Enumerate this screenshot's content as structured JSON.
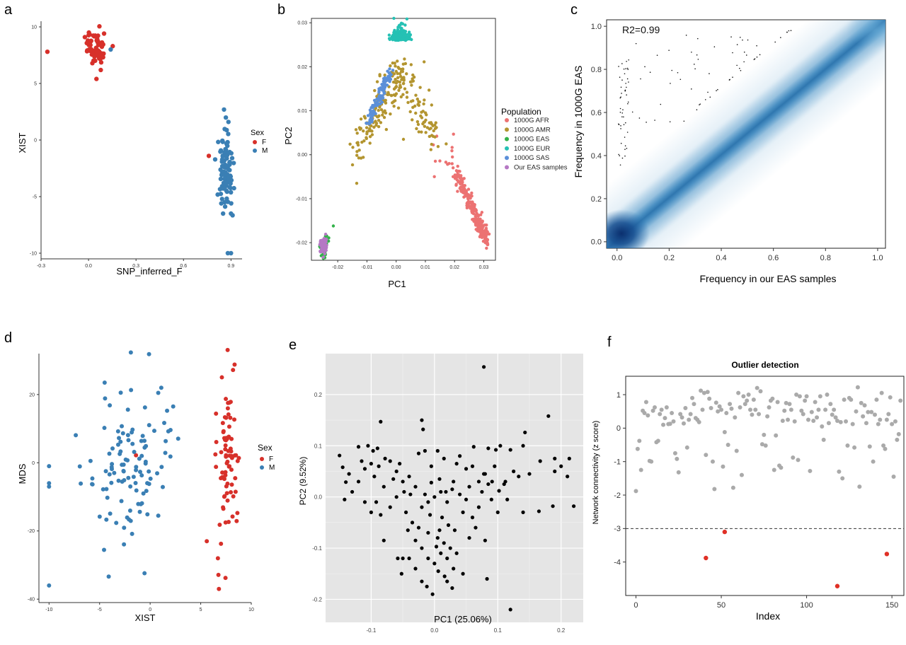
{
  "panel_labels": [
    "a",
    "b",
    "c",
    "d",
    "e",
    "f"
  ],
  "colors": {
    "female": "#d7302a",
    "male": "#3a7fb4",
    "afr": "#ec7272",
    "amr": "#b39530",
    "eas": "#33b24a",
    "eur": "#25c1b4",
    "sas": "#5b8fd9",
    "ours": "#b578c4",
    "outlier": "#e03026",
    "normal": "#aaaaaa",
    "density": "#1f5e9c"
  },
  "chart_data": [
    {
      "panel": "a",
      "type": "scatter",
      "xlabel": "SNP_inferred_F",
      "ylabel": "XIST",
      "xlim": [
        -0.3,
        0.97
      ],
      "ylim": [
        -10.5,
        10.5
      ],
      "x_ticks": [
        "-0.3",
        "0.0",
        "0.3",
        "0.6",
        "0.9"
      ],
      "x_tick_values": [
        -0.3,
        0.0,
        0.3,
        0.6,
        0.9
      ],
      "y_ticks": [
        "10",
        "5",
        "0",
        "-5",
        "-10"
      ],
      "y_tick_values": [
        10,
        5,
        0,
        -5,
        -10
      ],
      "legend": {
        "title": "Sex",
        "entries": [
          "F",
          "M"
        ]
      },
      "series": [
        {
          "name": "F",
          "color_key": "female",
          "cluster": {
            "cx": 0.05,
            "cy": 7.9,
            "sx": 0.035,
            "sy": 0.75,
            "n": 62
          },
          "extra": [
            [
              -0.26,
              7.8
            ],
            [
              0.76,
              -1.4
            ],
            [
              0.05,
              5.4
            ]
          ]
        },
        {
          "name": "M",
          "color_key": "male",
          "cluster": {
            "cx": 0.87,
            "cy": -2.3,
            "sx": 0.02,
            "sy": 2.0,
            "n": 95
          },
          "extra": [
            [
              0.14,
              8.0
            ],
            [
              0.88,
              -10.0
            ],
            [
              0.9,
              -10.0
            ],
            [
              0.85,
              -6.5
            ],
            [
              0.9,
              -6.5
            ],
            [
              0.86,
              -5.5
            ]
          ]
        }
      ]
    },
    {
      "panel": "b",
      "type": "scatter",
      "xlabel": "PC1",
      "ylabel": "PC2",
      "xlim": [
        -0.029,
        0.034
      ],
      "ylim": [
        -0.024,
        0.031
      ],
      "x_ticks": [
        "-0.02",
        "-0.01",
        "0.00",
        "0.01",
        "0.02",
        "0.03"
      ],
      "x_tick_values": [
        -0.02,
        -0.01,
        0.0,
        0.01,
        0.02,
        0.03
      ],
      "y_ticks": [
        "0.03",
        "0.02",
        "0.01",
        "0.00",
        "-0.01",
        "-0.02"
      ],
      "y_tick_values": [
        0.03,
        0.02,
        0.01,
        0.0,
        -0.01,
        -0.02
      ],
      "legend": {
        "title": "Population",
        "entries": [
          "1000G AFR",
          "1000G AMR",
          "1000G EAS",
          "1000G EUR",
          "1000G SAS",
          "Our EAS samples"
        ]
      }
    },
    {
      "panel": "c",
      "type": "heatmap",
      "xlabel": "Frequency in our EAS samples",
      "ylabel": "Frequency in 1000G EAS",
      "annotation": "R2=0.99",
      "xlim": [
        -0.04,
        1.03
      ],
      "ylim": [
        -0.03,
        1.03
      ],
      "x_ticks": [
        "0.0",
        "0.2",
        "0.4",
        "0.6",
        "0.8",
        "1.0"
      ],
      "x_tick_values": [
        0.0,
        0.2,
        0.4,
        0.6,
        0.8,
        1.0
      ],
      "y_ticks": [
        "1.0",
        "0.8",
        "0.6",
        "0.4",
        "0.2",
        "0.0"
      ],
      "y_tick_values": [
        1.0,
        0.8,
        0.6,
        0.4,
        0.2,
        0.0
      ]
    },
    {
      "panel": "d",
      "type": "scatter",
      "xlabel": "XIST",
      "ylabel": "MDS",
      "xlim": [
        -11,
        10
      ],
      "ylim": [
        -41,
        32
      ],
      "x_ticks": [
        "-10",
        "-5",
        "0",
        "5",
        "10"
      ],
      "x_tick_values": [
        -10,
        -5,
        0,
        5,
        10
      ],
      "y_ticks": [
        "20",
        "0",
        "-20",
        "-40"
      ],
      "y_tick_values": [
        20,
        0,
        -20,
        -40
      ],
      "legend": {
        "title": "Sex",
        "entries": [
          "F",
          "M"
        ]
      },
      "series": [
        {
          "name": "F",
          "color_key": "female",
          "cluster": {
            "cx": 7.6,
            "cy": 2.0,
            "sx": 0.55,
            "sy": 13.0,
            "n": 80
          },
          "extra": [
            [
              6.8,
              -37
            ],
            [
              5.6,
              -23
            ],
            [
              -1.4,
              2.2
            ]
          ]
        },
        {
          "name": "M",
          "color_key": "male",
          "cluster": {
            "cx": -2.0,
            "cy": -2.0,
            "sx": 2.0,
            "sy": 11.0,
            "n": 110
          },
          "extra": [
            [
              -10,
              -36
            ],
            [
              -10,
              -1
            ],
            [
              -10,
              -6
            ],
            [
              -10,
              -7
            ],
            [
              -4.5,
              23.5
            ],
            [
              0.8,
              20.5
            ],
            [
              1.1,
              22
            ]
          ]
        }
      ]
    },
    {
      "panel": "e",
      "type": "scatter",
      "xlabel": "PC1 (25.06%)",
      "ylabel": "PC2 (9.52%)",
      "xlim": [
        -0.172,
        0.235
      ],
      "ylim": [
        -0.245,
        0.28
      ],
      "x_ticks": [
        "-0.1",
        "0.0",
        "0.1",
        "0.2"
      ],
      "x_tick_values": [
        -0.1,
        0.0,
        0.1,
        0.2
      ],
      "y_ticks": [
        "0.2",
        "0.1",
        "0.0",
        "-0.1",
        "-0.2"
      ],
      "y_tick_values": [
        0.2,
        0.1,
        0.0,
        -0.1,
        -0.2
      ],
      "points": [
        [
          0.078,
          0.254
        ],
        [
          0.18,
          0.158
        ],
        [
          0.143,
          0.126
        ],
        [
          -0.085,
          0.147
        ],
        [
          -0.02,
          0.15
        ],
        [
          -0.018,
          0.132
        ],
        [
          0.085,
          0.095
        ],
        [
          0.104,
          0.1
        ],
        [
          0.12,
          0.092
        ],
        [
          0.14,
          0.1
        ],
        [
          0.213,
          0.075
        ],
        [
          0.19,
          0.075
        ],
        [
          0.167,
          0.07
        ],
        [
          0.2,
          0.06
        ],
        [
          -0.15,
          0.081
        ],
        [
          -0.12,
          0.098
        ],
        [
          -0.105,
          0.1
        ],
        [
          -0.09,
          0.095
        ],
        [
          -0.145,
          0.058
        ],
        [
          -0.14,
          0.029
        ],
        [
          -0.142,
          -0.005
        ],
        [
          -0.13,
          0.01
        ],
        [
          -0.11,
          0.055
        ],
        [
          -0.1,
          0.065
        ],
        [
          0.21,
          0.04
        ],
        [
          0.19,
          0.05
        ],
        [
          0.22,
          -0.018
        ],
        [
          0.187,
          -0.018
        ],
        [
          0.15,
          0.045
        ],
        [
          0.133,
          0.04
        ],
        [
          0.165,
          -0.028
        ],
        [
          0.11,
          0.025
        ],
        [
          0.112,
          0.03
        ],
        [
          0.085,
          0.025
        ],
        [
          0.091,
          0.03
        ],
        [
          0.102,
          0.012
        ],
        [
          0.14,
          -0.03
        ],
        [
          0.08,
          -0.085
        ],
        [
          0.083,
          -0.16
        ],
        [
          0.12,
          -0.22
        ],
        [
          -0.003,
          -0.19
        ],
        [
          -0.02,
          -0.165
        ],
        [
          0.02,
          -0.165
        ],
        [
          0.03,
          -0.14
        ],
        [
          0.045,
          -0.15
        ],
        [
          -0.03,
          -0.14
        ],
        [
          -0.04,
          -0.12
        ],
        [
          -0.05,
          -0.12
        ],
        [
          -0.058,
          -0.12
        ],
        [
          -0.08,
          -0.085
        ],
        [
          -0.092,
          -0.01
        ],
        [
          -0.085,
          -0.035
        ],
        [
          -0.11,
          -0.01
        ],
        [
          -0.07,
          0.07
        ],
        [
          -0.06,
          0.05
        ],
        [
          -0.05,
          0.03
        ],
        [
          -0.04,
          0.04
        ],
        [
          -0.03,
          0.02
        ],
        [
          -0.02,
          -0.02
        ],
        [
          -0.01,
          -0.01
        ],
        [
          0.0,
          0.0
        ],
        [
          0.01,
          0.01
        ],
        [
          0.02,
          -0.01
        ],
        [
          0.03,
          0.03
        ],
        [
          0.04,
          0.005
        ],
        [
          0.05,
          -0.005
        ],
        [
          0.06,
          0.06
        ],
        [
          0.07,
          0.03
        ],
        [
          -0.025,
          0.085
        ],
        [
          -0.015,
          0.09
        ],
        [
          0.005,
          0.09
        ],
        [
          0.015,
          0.075
        ],
        [
          0.035,
          0.065
        ],
        [
          0.05,
          0.055
        ],
        [
          -0.005,
          0.06
        ],
        [
          -0.045,
          -0.03
        ],
        [
          -0.035,
          -0.05
        ],
        [
          -0.025,
          -0.06
        ],
        [
          -0.01,
          -0.07
        ],
        [
          0.005,
          -0.08
        ],
        [
          0.015,
          -0.09
        ],
        [
          0.025,
          -0.1
        ],
        [
          0.01,
          -0.11
        ],
        [
          0.0,
          -0.13
        ],
        [
          -0.01,
          -0.12
        ],
        [
          0.02,
          -0.12
        ],
        [
          0.035,
          -0.11
        ],
        [
          0.06,
          -0.04
        ],
        [
          0.065,
          -0.06
        ],
        [
          0.045,
          -0.03
        ],
        [
          -0.06,
          0.0
        ],
        [
          -0.07,
          -0.02
        ],
        [
          -0.08,
          0.02
        ],
        [
          -0.065,
          0.035
        ],
        [
          -0.055,
          0.065
        ],
        [
          -0.095,
          0.04
        ],
        [
          -0.12,
          0.03
        ],
        [
          0.075,
          0.01
        ],
        [
          0.055,
          0.02
        ],
        [
          0.09,
          -0.005
        ],
        [
          0.1,
          -0.03
        ],
        [
          0.115,
          -0.005
        ],
        [
          0.125,
          0.05
        ],
        [
          0.095,
          0.06
        ],
        [
          0.08,
          0.045
        ],
        [
          0.062,
          0.098
        ],
        [
          0.04,
          0.08
        ],
        [
          -0.078,
          0.075
        ],
        [
          -0.088,
          0.06
        ],
        [
          -0.005,
          0.028
        ],
        [
          0.008,
          0.035
        ],
        [
          0.018,
          0.01
        ],
        [
          0.028,
          0.015
        ],
        [
          -0.038,
          0.005
        ],
        [
          -0.048,
          0.01
        ],
        [
          -0.015,
          0.005
        ],
        [
          -0.007,
          -0.035
        ],
        [
          0.012,
          -0.04
        ],
        [
          0.022,
          -0.055
        ],
        [
          0.032,
          -0.065
        ],
        [
          -0.02,
          -0.1
        ],
        [
          -0.03,
          -0.085
        ],
        [
          -0.042,
          -0.065
        ],
        [
          0.055,
          -0.08
        ],
        [
          0.07,
          -0.02
        ],
        [
          -0.1,
          -0.03
        ],
        [
          -0.115,
          0.07
        ],
        [
          -0.135,
          0.045
        ],
        [
          0.006,
          -0.145
        ],
        [
          0.016,
          -0.155
        ],
        [
          -0.012,
          -0.175
        ],
        [
          0.028,
          -0.178
        ],
        [
          -0.097,
          0.09
        ],
        [
          0.003,
          -0.097
        ],
        [
          0.008,
          -0.065
        ],
        [
          -0.052,
          -0.15
        ],
        [
          0.078,
          0.045
        ],
        [
          0.097,
          0.092
        ]
      ]
    },
    {
      "panel": "f",
      "type": "scatter",
      "title": "Outlier detection",
      "xlabel": "Index",
      "ylabel": "Network connectivity (z score)",
      "xlim": [
        -6,
        157
      ],
      "ylim": [
        -5.0,
        1.55
      ],
      "threshold": -3,
      "x_ticks": [
        "0",
        "50",
        "100",
        "150"
      ],
      "x_tick_values": [
        0,
        50,
        100,
        150
      ],
      "y_ticks": [
        "1",
        "0",
        "-1",
        "-2",
        "-3",
        "-4"
      ],
      "y_tick_values": [
        1,
        0,
        -1,
        -2,
        -3,
        -4
      ],
      "outliers": [
        [
          41,
          -3.88
        ],
        [
          52,
          -3.1
        ],
        [
          118,
          -4.72
        ],
        [
          147,
          -3.76
        ]
      ],
      "values": [
        -1.88,
        -0.62,
        -0.38,
        -1.25,
        0.52,
        0.45,
        0.78,
        0.38,
        -0.98,
        -1.0,
        0.52,
        0.62,
        -0.42,
        -0.38,
        0.42,
        0.55,
        0.1,
        0.3,
        0.62,
        0.12,
        0.13,
        0.45,
        0.2,
        -0.75,
        -0.92,
        -1.32,
        0.42,
        0.32,
        0.14,
        0.6,
        -0.58,
        0.25,
        0.42,
        0.9,
        0.72,
        0.3,
        0.25,
        0.18,
        1.12,
        0.55,
        1.05,
        -0.8,
        1.08,
        0.88,
        0.6,
        -1.0,
        -1.82,
        0.76,
        0.5,
        0.65,
        0.55,
        -1.15,
        -0.12,
        0.45,
        -0.5,
        0.72,
        0.58,
        -1.78,
        0.32,
        -0.68,
        1.05,
        0.62,
        -1.4,
        0.95,
        0.72,
        0.82,
        1.0,
        0.55,
        0.4,
        0.85,
        0.55,
        1.2,
        0.42,
        1.1,
        -0.48,
        -0.2,
        -0.52,
        0.35,
        0.62,
        0.82,
        0.88,
        -1.25,
        -0.22,
        0.78,
        -1.12,
        -1.18,
        0.22,
        0.52,
        0.75,
        0.25,
        0.72,
        0.55,
        -0.88,
        0.2,
        1.0,
        -0.95,
        0.95,
        0.52,
        0.42,
        0.82,
        0.95,
        0.25,
        -1.28,
        0.48,
        0.22,
        0.78,
        0.32,
        0.55,
        0.95,
        0.05,
        -0.35,
        0.55,
        1.0,
        0.15,
        0.72,
        0.4,
        0.55,
        0.32,
        0.22,
        -1.3,
        0.18,
        -1.5,
        0.85,
        0.2,
        -0.52,
        0.9,
        0.85,
        0.12,
        -0.58,
        0.5,
        1.22,
        -1.75,
        0.75,
        0.35,
        0.68,
        0.15,
        0.48,
        -0.55,
        0.48,
        -1.0,
        0.4,
        0.85,
        0.12,
        0.25,
        1.05,
        -0.52,
        -0.62,
        0.25,
        0.42,
        0.92,
        0.12,
        -1.45,
        0.2,
        -0.35,
        -0.18,
        0.82
      ]
    }
  ]
}
